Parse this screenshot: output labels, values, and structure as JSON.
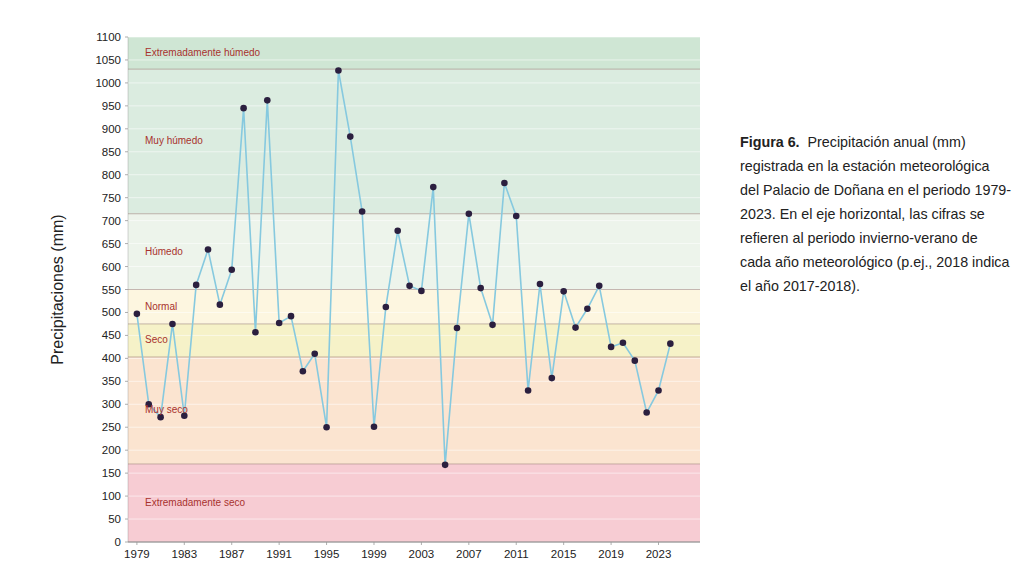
{
  "chart_data": {
    "type": "line",
    "ylabel": "Precipitaciones (mm)",
    "caption_title": "Figura 6.",
    "caption": "Precipitación anual (mm) registrada en la estación meteorológica del Palacio de Doñana en el periodo 1979-2023. En el eje horizontal, las cifras se refieren al periodo invierno-verano de cada año meteorológico (p.ej., 2018 indica el año 2017-2018).",
    "x": [
      1979,
      1980,
      1981,
      1982,
      1983,
      1984,
      1985,
      1986,
      1987,
      1988,
      1989,
      1990,
      1991,
      1992,
      1993,
      1994,
      1995,
      1996,
      1997,
      1998,
      1999,
      2000,
      2001,
      2002,
      2003,
      2004,
      2005,
      2006,
      2007,
      2008,
      2009,
      2010,
      2011,
      2012,
      2013,
      2014,
      2015,
      2016,
      2017,
      2018,
      2019,
      2020,
      2021,
      2022,
      2023,
      2024
    ],
    "values": [
      497,
      300,
      272,
      475,
      275,
      560,
      637,
      517,
      593,
      945,
      457,
      962,
      477,
      492,
      372,
      410,
      250,
      1027,
      883,
      720,
      251,
      512,
      678,
      558,
      547,
      773,
      168,
      466,
      715,
      553,
      473,
      782,
      710,
      330,
      562,
      357,
      546,
      467,
      508,
      558,
      425,
      434,
      395,
      282,
      330,
      432
    ],
    "color": "#86c9df",
    "marker": "circle",
    "xlim": [
      1978.25,
      2026.5
    ],
    "xticks": [
      1979,
      1983,
      1987,
      1991,
      1995,
      1999,
      2003,
      2007,
      2011,
      2015,
      2019,
      2023
    ],
    "ylim": [
      0,
      1100
    ],
    "yticks": [
      0,
      50,
      100,
      150,
      200,
      250,
      300,
      350,
      400,
      450,
      500,
      550,
      600,
      650,
      700,
      750,
      800,
      850,
      900,
      950,
      1000,
      1050,
      1100
    ],
    "grid": true,
    "bands": [
      {
        "label": "Extremadamente seco",
        "from": 0,
        "to": 170,
        "color": "#f7ccd3"
      },
      {
        "label": "Muy seco",
        "from": 170,
        "to": 403,
        "color": "#fbe4d0"
      },
      {
        "label": "Seco",
        "from": 403,
        "to": 475,
        "color": "#f6f2c8"
      },
      {
        "label": "Normal",
        "from": 475,
        "to": 550,
        "color": "#fdf6e0"
      },
      {
        "label": "Húmedo",
        "from": 550,
        "to": 715,
        "color": "#edf4eb"
      },
      {
        "label": "Muy húmedo",
        "from": 715,
        "to": 1030,
        "color": "#dbece0"
      },
      {
        "label": "Extremadamente húmedo",
        "from": 1030,
        "to": 1100,
        "color": "#cfe6d4"
      }
    ]
  }
}
